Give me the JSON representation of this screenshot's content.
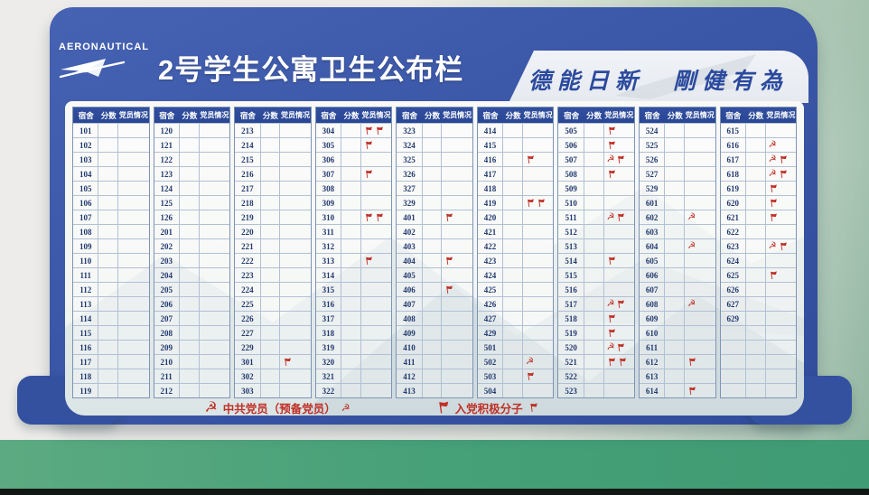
{
  "board": {
    "logo_text": "AERONAUTICAL",
    "title": "2号学生公寓卫生公布栏",
    "motto": "德能日新　剛健有為"
  },
  "table": {
    "headers": [
      "宿舍",
      "分数",
      "党员情况"
    ],
    "groups": [
      {
        "rows": [
          {
            "room": "101"
          },
          {
            "room": "102"
          },
          {
            "room": "103"
          },
          {
            "room": "104"
          },
          {
            "room": "105"
          },
          {
            "room": "106"
          },
          {
            "room": "107"
          },
          {
            "room": "108"
          },
          {
            "room": "109"
          },
          {
            "room": "110"
          },
          {
            "room": "111"
          },
          {
            "room": "112"
          },
          {
            "room": "113"
          },
          {
            "room": "114"
          },
          {
            "room": "115"
          },
          {
            "room": "116"
          },
          {
            "room": "117"
          },
          {
            "room": "118"
          },
          {
            "room": "119"
          }
        ]
      },
      {
        "rows": [
          {
            "room": "120"
          },
          {
            "room": "121"
          },
          {
            "room": "122"
          },
          {
            "room": "123"
          },
          {
            "room": "124"
          },
          {
            "room": "125"
          },
          {
            "room": "126"
          },
          {
            "room": "201"
          },
          {
            "room": "202"
          },
          {
            "room": "203"
          },
          {
            "room": "204"
          },
          {
            "room": "205"
          },
          {
            "room": "206"
          },
          {
            "room": "207"
          },
          {
            "room": "208"
          },
          {
            "room": "209"
          },
          {
            "room": "210"
          },
          {
            "room": "211"
          },
          {
            "room": "212"
          }
        ]
      },
      {
        "rows": [
          {
            "room": "213"
          },
          {
            "room": "214"
          },
          {
            "room": "215"
          },
          {
            "room": "216"
          },
          {
            "room": "217"
          },
          {
            "room": "218"
          },
          {
            "room": "219"
          },
          {
            "room": "220"
          },
          {
            "room": "221"
          },
          {
            "room": "222"
          },
          {
            "room": "223"
          },
          {
            "room": "224"
          },
          {
            "room": "225"
          },
          {
            "room": "226"
          },
          {
            "room": "227"
          },
          {
            "room": "229"
          },
          {
            "room": "301",
            "icons": [
              "flag"
            ]
          },
          {
            "room": "302"
          },
          {
            "room": "303"
          }
        ]
      },
      {
        "rows": [
          {
            "room": "304",
            "icons": [
              "flag",
              "flag"
            ]
          },
          {
            "room": "305",
            "icons": [
              "flag"
            ]
          },
          {
            "room": "306"
          },
          {
            "room": "307",
            "icons": [
              "flag"
            ]
          },
          {
            "room": "308"
          },
          {
            "room": "309"
          },
          {
            "room": "310",
            "icons": [
              "flag",
              "flag"
            ]
          },
          {
            "room": "311"
          },
          {
            "room": "312"
          },
          {
            "room": "313",
            "icons": [
              "flag"
            ]
          },
          {
            "room": "314"
          },
          {
            "room": "315"
          },
          {
            "room": "316"
          },
          {
            "room": "317"
          },
          {
            "room": "318"
          },
          {
            "room": "319"
          },
          {
            "room": "320"
          },
          {
            "room": "321"
          },
          {
            "room": "322"
          }
        ]
      },
      {
        "rows": [
          {
            "room": "323"
          },
          {
            "room": "324"
          },
          {
            "room": "325"
          },
          {
            "room": "326"
          },
          {
            "room": "327"
          },
          {
            "room": "329"
          },
          {
            "room": "401",
            "icons": [
              "flag"
            ]
          },
          {
            "room": "402"
          },
          {
            "room": "403"
          },
          {
            "room": "404",
            "icons": [
              "flag"
            ]
          },
          {
            "room": "405"
          },
          {
            "room": "406",
            "icons": [
              "flag"
            ]
          },
          {
            "room": "407"
          },
          {
            "room": "408"
          },
          {
            "room": "409"
          },
          {
            "room": "410"
          },
          {
            "room": "411"
          },
          {
            "room": "412"
          },
          {
            "room": "413"
          }
        ]
      },
      {
        "rows": [
          {
            "room": "414"
          },
          {
            "room": "415"
          },
          {
            "room": "416",
            "icons": [
              "flag"
            ]
          },
          {
            "room": "417"
          },
          {
            "room": "418"
          },
          {
            "room": "419",
            "icons": [
              "flag",
              "flag"
            ]
          },
          {
            "room": "420"
          },
          {
            "room": "421"
          },
          {
            "room": "422"
          },
          {
            "room": "423"
          },
          {
            "room": "424"
          },
          {
            "room": "425"
          },
          {
            "room": "426"
          },
          {
            "room": "427"
          },
          {
            "room": "429"
          },
          {
            "room": "501"
          },
          {
            "room": "502",
            "icons": [
              "member"
            ]
          },
          {
            "room": "503",
            "icons": [
              "flag"
            ]
          },
          {
            "room": "504"
          }
        ]
      },
      {
        "rows": [
          {
            "room": "505",
            "icons": [
              "flag"
            ]
          },
          {
            "room": "506",
            "icons": [
              "flag"
            ]
          },
          {
            "room": "507",
            "icons": [
              "member",
              "flag"
            ]
          },
          {
            "room": "508",
            "icons": [
              "flag"
            ]
          },
          {
            "room": "509"
          },
          {
            "room": "510"
          },
          {
            "room": "511",
            "icons": [
              "member",
              "flag"
            ]
          },
          {
            "room": "512"
          },
          {
            "room": "513"
          },
          {
            "room": "514",
            "icons": [
              "flag"
            ]
          },
          {
            "room": "515"
          },
          {
            "room": "516"
          },
          {
            "room": "517",
            "icons": [
              "member",
              "flag"
            ]
          },
          {
            "room": "518",
            "icons": [
              "flag"
            ]
          },
          {
            "room": "519",
            "icons": [
              "flag"
            ]
          },
          {
            "room": "520",
            "icons": [
              "member",
              "flag"
            ]
          },
          {
            "room": "521",
            "icons": [
              "flag",
              "flag"
            ]
          },
          {
            "room": "522"
          },
          {
            "room": "523"
          }
        ]
      },
      {
        "rows": [
          {
            "room": "524"
          },
          {
            "room": "525"
          },
          {
            "room": "526"
          },
          {
            "room": "527"
          },
          {
            "room": "529"
          },
          {
            "room": "601"
          },
          {
            "room": "602",
            "icons": [
              "member"
            ]
          },
          {
            "room": "603"
          },
          {
            "room": "604",
            "icons": [
              "member"
            ]
          },
          {
            "room": "605"
          },
          {
            "room": "606"
          },
          {
            "room": "607"
          },
          {
            "room": "608",
            "icons": [
              "member"
            ]
          },
          {
            "room": "609"
          },
          {
            "room": "610"
          },
          {
            "room": "611"
          },
          {
            "room": "612",
            "icons": [
              "flag"
            ]
          },
          {
            "room": "613"
          },
          {
            "room": "614",
            "icons": [
              "flag"
            ]
          }
        ]
      },
      {
        "rows": [
          {
            "room": "615"
          },
          {
            "room": "616",
            "icons": [
              "member"
            ]
          },
          {
            "room": "617",
            "icons": [
              "member",
              "flag"
            ]
          },
          {
            "room": "618",
            "icons": [
              "member",
              "flag"
            ]
          },
          {
            "room": "619",
            "icons": [
              "flag"
            ]
          },
          {
            "room": "620",
            "icons": [
              "flag"
            ]
          },
          {
            "room": "621",
            "icons": [
              "flag"
            ]
          },
          {
            "room": "622"
          },
          {
            "room": "623",
            "icons": [
              "member",
              "flag"
            ]
          },
          {
            "room": "624"
          },
          {
            "room": "625",
            "icons": [
              "flag"
            ]
          },
          {
            "room": "626"
          },
          {
            "room": "627"
          },
          {
            "room": "629"
          },
          {
            "room": ""
          },
          {
            "room": ""
          },
          {
            "room": ""
          },
          {
            "room": ""
          },
          {
            "room": ""
          }
        ]
      }
    ]
  },
  "legend": [
    {
      "icon": "hammer-sickle-icon",
      "label": "中共党员（预备党员）"
    },
    {
      "icon": "flag-icon",
      "label": "入党积极分子"
    }
  ],
  "icon_meanings": {
    "flag": "入党积极分子",
    "member": "中共党员（预备党员）"
  },
  "colors": {
    "frame_blue": "#3a56a6",
    "table_header_blue": "#2c4a9c",
    "accent_red": "#bf2f26",
    "room_text_blue": "#22396f",
    "motto_blue": "#2b4a9e",
    "panel_bg": "#f7f8f5",
    "skirting_green": "#46a078"
  }
}
